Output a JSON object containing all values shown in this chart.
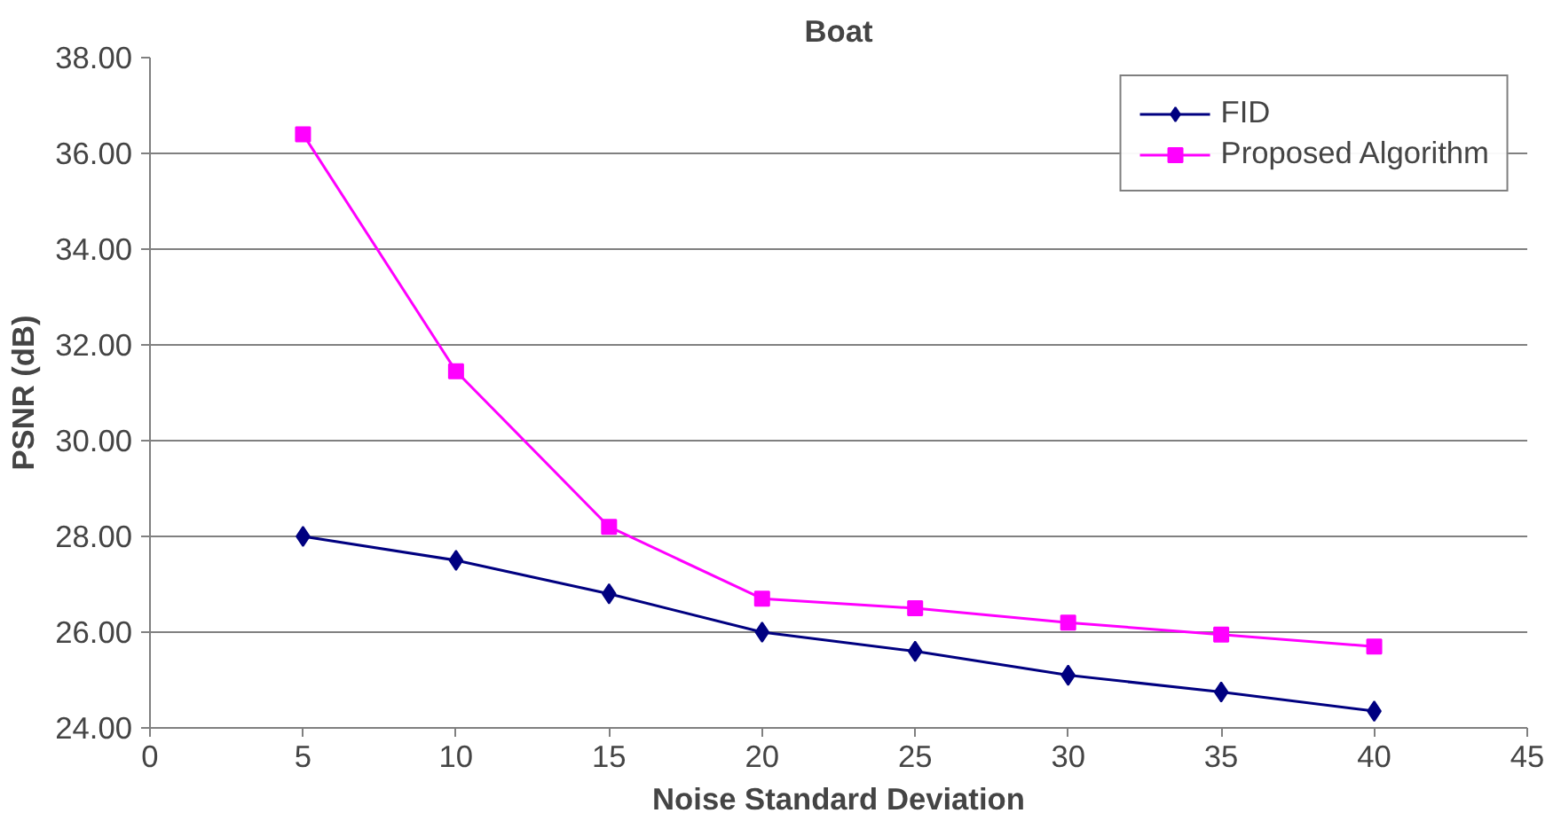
{
  "chart_data": {
    "type": "line",
    "title": "Boat",
    "xlabel": "Noise Standard Deviation",
    "ylabel": "PSNR (dB)",
    "x": [
      5,
      10,
      15,
      20,
      25,
      30,
      35,
      40
    ],
    "series": [
      {
        "name": "FID",
        "color": "#000080",
        "marker": "diamond",
        "values": [
          28.0,
          27.5,
          26.8,
          26.0,
          25.6,
          25.1,
          24.75,
          24.35
        ]
      },
      {
        "name": "Proposed Algorithm",
        "color": "#ff00ff",
        "marker": "square",
        "values": [
          36.4,
          31.45,
          28.2,
          26.7,
          26.5,
          26.2,
          25.95,
          25.7
        ]
      }
    ],
    "xlim": [
      0,
      45
    ],
    "xticks": [
      0,
      5,
      10,
      15,
      20,
      25,
      30,
      35,
      40,
      45
    ],
    "ylim": [
      24,
      38
    ],
    "yticks": [
      {
        "value": 24,
        "label": "24.00"
      },
      {
        "value": 26,
        "label": "26.00"
      },
      {
        "value": 28,
        "label": "28.00"
      },
      {
        "value": 30,
        "label": "30.00"
      },
      {
        "value": 32,
        "label": "32.00"
      },
      {
        "value": 34,
        "label": "34.00"
      },
      {
        "value": 36,
        "label": "36.00"
      },
      {
        "value": 38,
        "label": "38.00"
      }
    ],
    "grid": "y",
    "legend": "top right",
    "line_style": "solid"
  }
}
